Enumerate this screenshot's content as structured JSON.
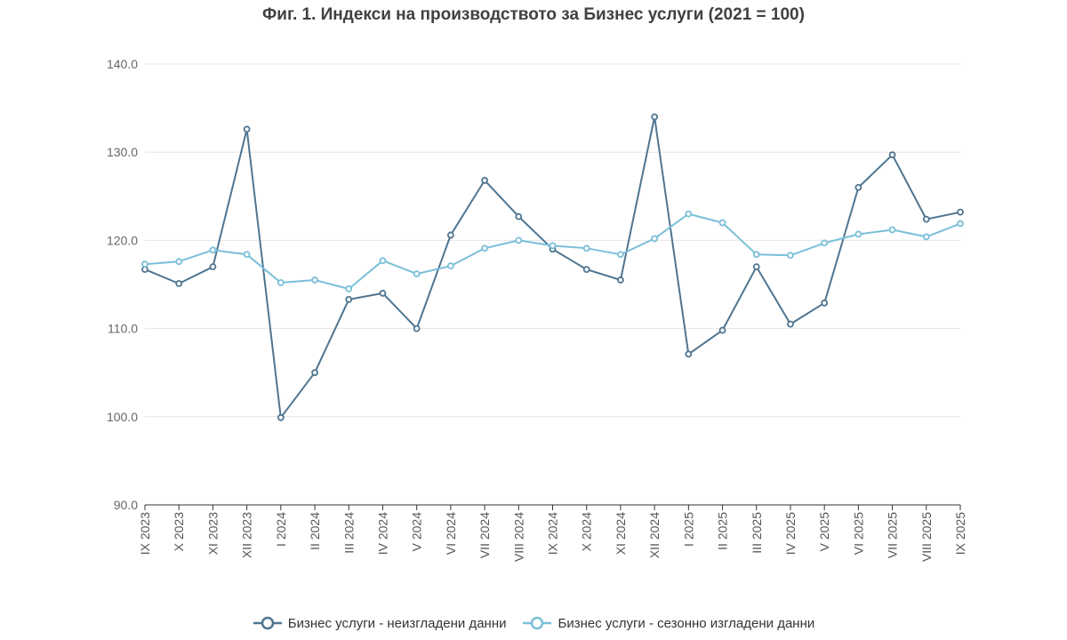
{
  "chart_data": {
    "type": "line",
    "title": "Фиг. 1. Индекси на производството за Бизнес услуги (2021 = 100)",
    "xlabel": "",
    "ylabel": "",
    "ylim": [
      90,
      140
    ],
    "yticks": [
      "90.0",
      "100.0",
      "110.0",
      "120.0",
      "130.0",
      "140.0"
    ],
    "grid": true,
    "legend_position": "bottom",
    "categories": [
      "IX 2023",
      "X 2023",
      "XI 2023",
      "XII 2023",
      "I 2024",
      "II 2024",
      "III 2024",
      "IV 2024",
      "V 2024",
      "VI 2024",
      "VII 2024",
      "VIII 2024",
      "IX 2024",
      "X 2024",
      "XI 2024",
      "XII 2024",
      "I 2025",
      "II 2025",
      "III 2025",
      "IV 2025",
      "V 2025",
      "VI 2025",
      "VII 2025",
      "VIII 2025",
      "IX 2025"
    ],
    "series": [
      {
        "name": "Бизнес услуги - неизгладени данни",
        "color": "#4f7591",
        "values": [
          116.7,
          115.1,
          117.0,
          132.6,
          99.9,
          105.0,
          113.3,
          114.0,
          110.0,
          120.6,
          126.8,
          122.7,
          119.0,
          116.7,
          115.5,
          134.0,
          107.1,
          109.8,
          117.0,
          110.5,
          112.9,
          126.0,
          129.7,
          122.4,
          123.2
        ]
      },
      {
        "name": "Бизнес услуги - сезонно изгладени данни",
        "color": "#7bbfd9",
        "values": [
          117.3,
          117.6,
          118.9,
          118.4,
          115.2,
          115.5,
          114.5,
          117.7,
          116.2,
          117.1,
          119.1,
          120.0,
          119.4,
          119.1,
          118.4,
          120.2,
          123.0,
          122.0,
          118.4,
          118.3,
          119.7,
          120.7,
          121.2,
          120.4,
          121.9
        ]
      }
    ]
  }
}
